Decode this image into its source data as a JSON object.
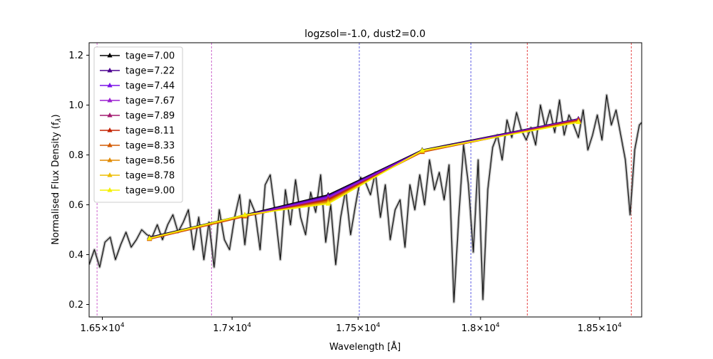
{
  "chart_data": {
    "type": "line",
    "title": "logzsol=-1.0, dust2=0.0",
    "xlabel": "Wavelength [Å]",
    "ylabel": "Normalised Flux Density (f",
    "ylabel_sub": "λ",
    "ylabel_close": ")",
    "xlim": [
      16450,
      18680
    ],
    "ylim": [
      0.15,
      1.25
    ],
    "xscale": "log",
    "grid": false,
    "legend_position": "upper-left",
    "x_ticks": [
      {
        "value": 16500,
        "base": "1.65",
        "exp": "4"
      },
      {
        "value": 17000,
        "base": "1.7",
        "exp": "4"
      },
      {
        "value": 17500,
        "base": "1.75",
        "exp": "4"
      },
      {
        "value": 18000,
        "base": "1.8",
        "exp": "4"
      },
      {
        "value": 18500,
        "base": "1.85",
        "exp": "4"
      }
    ],
    "y_ticks": [
      {
        "value": 0.2,
        "label": "0.2"
      },
      {
        "value": 0.4,
        "label": "0.4"
      },
      {
        "value": 0.6,
        "label": "0.6"
      },
      {
        "value": 0.8,
        "label": "0.8"
      },
      {
        "value": 1.0,
        "label": "1.0"
      },
      {
        "value": 1.2,
        "label": "1.2"
      }
    ],
    "vertical_lines": [
      {
        "x": 16480,
        "color": "#c040c0"
      },
      {
        "x": 16920,
        "color": "#c040c0"
      },
      {
        "x": 17505,
        "color": "#4040e0"
      },
      {
        "x": 17960,
        "color": "#4040e0"
      },
      {
        "x": 18195,
        "color": "#e02020"
      },
      {
        "x": 18635,
        "color": "#e02020"
      }
    ],
    "spectrum": {
      "x": [
        16450,
        16470,
        16490,
        16510,
        16530,
        16550,
        16570,
        16590,
        16610,
        16630,
        16650,
        16670,
        16690,
        16710,
        16730,
        16750,
        16770,
        16790,
        16810,
        16830,
        16850,
        16870,
        16890,
        16910,
        16930,
        16950,
        16970,
        16990,
        17010,
        17030,
        17050,
        17070,
        17090,
        17110,
        17130,
        17150,
        17170,
        17190,
        17210,
        17230,
        17250,
        17270,
        17290,
        17310,
        17330,
        17350,
        17370,
        17390,
        17410,
        17430,
        17450,
        17470,
        17490,
        17510,
        17530,
        17550,
        17570,
        17590,
        17610,
        17630,
        17650,
        17670,
        17690,
        17710,
        17730,
        17750,
        17770,
        17790,
        17810,
        17830,
        17850,
        17870,
        17890,
        17910,
        17930,
        17950,
        17970,
        17990,
        18010,
        18030,
        18050,
        18070,
        18090,
        18110,
        18130,
        18150,
        18170,
        18190,
        18210,
        18230,
        18250,
        18270,
        18290,
        18310,
        18330,
        18350,
        18370,
        18390,
        18410,
        18430,
        18450,
        18470,
        18490,
        18510,
        18530,
        18550,
        18570,
        18590,
        18610,
        18630,
        18650,
        18670,
        18680
      ],
      "y": [
        0.36,
        0.42,
        0.35,
        0.45,
        0.47,
        0.38,
        0.44,
        0.49,
        0.43,
        0.46,
        0.5,
        0.48,
        0.47,
        0.52,
        0.46,
        0.52,
        0.56,
        0.49,
        0.53,
        0.58,
        0.42,
        0.55,
        0.38,
        0.53,
        0.35,
        0.58,
        0.46,
        0.42,
        0.55,
        0.64,
        0.44,
        0.62,
        0.57,
        0.42,
        0.68,
        0.72,
        0.56,
        0.38,
        0.66,
        0.52,
        0.7,
        0.55,
        0.48,
        0.65,
        0.57,
        0.72,
        0.45,
        0.6,
        0.36,
        0.55,
        0.66,
        0.48,
        0.6,
        0.71,
        0.69,
        0.64,
        0.73,
        0.55,
        0.68,
        0.46,
        0.58,
        0.62,
        0.43,
        0.68,
        0.58,
        0.72,
        0.6,
        0.78,
        0.66,
        0.73,
        0.62,
        0.76,
        0.21,
        0.55,
        0.84,
        0.68,
        0.41,
        0.78,
        0.22,
        0.66,
        0.83,
        0.88,
        0.78,
        0.94,
        0.87,
        0.97,
        0.9,
        0.86,
        0.91,
        0.84,
        1.0,
        0.91,
        0.98,
        0.89,
        1.02,
        0.88,
        0.96,
        0.92,
        0.87,
        0.98,
        0.82,
        0.88,
        0.96,
        0.86,
        1.04,
        0.92,
        0.98,
        0.88,
        0.78,
        0.56,
        0.82,
        0.92,
        0.93
      ]
    },
    "series": [
      {
        "name": "tage=7.00",
        "color": "#000000",
        "x": [
          16680,
          17050,
          17380,
          17760,
          18410
        ],
        "y": [
          0.47,
          0.56,
          0.64,
          0.82,
          0.945
        ]
      },
      {
        "name": "tage=7.22",
        "color": "#4b0090",
        "x": [
          16680,
          17050,
          17380,
          17760,
          18410
        ],
        "y": [
          0.468,
          0.558,
          0.636,
          0.818,
          0.944
        ]
      },
      {
        "name": "tage=7.44",
        "color": "#7a10e8",
        "x": [
          16680,
          17050,
          17380,
          17760,
          18410
        ],
        "y": [
          0.466,
          0.556,
          0.632,
          0.816,
          0.943
        ]
      },
      {
        "name": "tage=7.67",
        "color": "#9b1fd0",
        "x": [
          16680,
          17050,
          17380,
          17760,
          18410
        ],
        "y": [
          0.465,
          0.555,
          0.628,
          0.814,
          0.942
        ]
      },
      {
        "name": "tage=7.89",
        "color": "#a31a70",
        "x": [
          16680,
          17050,
          17380,
          17760,
          18410
        ],
        "y": [
          0.464,
          0.554,
          0.624,
          0.812,
          0.941
        ]
      },
      {
        "name": "tage=8.11",
        "color": "#c42200",
        "x": [
          16680,
          17050,
          17380,
          17760,
          18410
        ],
        "y": [
          0.462,
          0.553,
          0.62,
          0.811,
          0.939
        ]
      },
      {
        "name": "tage=8.33",
        "color": "#d45a00",
        "x": [
          16680,
          17050,
          17380,
          17760,
          18410
        ],
        "y": [
          0.463,
          0.554,
          0.616,
          0.812,
          0.937
        ]
      },
      {
        "name": "tage=8.56",
        "color": "#e28a00",
        "x": [
          16680,
          17050,
          17380,
          17760,
          18410
        ],
        "y": [
          0.464,
          0.556,
          0.612,
          0.814,
          0.935
        ]
      },
      {
        "name": "tage=8.78",
        "color": "#eebd00",
        "x": [
          16680,
          17050,
          17380,
          17760,
          18410
        ],
        "y": [
          0.465,
          0.558,
          0.608,
          0.816,
          0.933
        ]
      },
      {
        "name": "tage=9.00",
        "color": "#f5f000",
        "x": [
          16680,
          17050,
          17380,
          17760,
          18410
        ],
        "y": [
          0.466,
          0.56,
          0.604,
          0.818,
          0.931
        ]
      }
    ]
  }
}
